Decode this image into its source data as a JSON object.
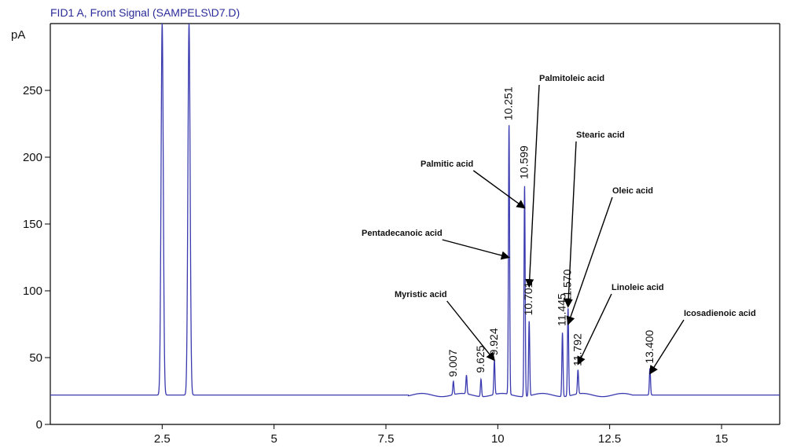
{
  "chart_data": {
    "type": "line",
    "title": "FID1 A, Front Signal (SAMPELS\\D7.D)",
    "ylabel": "pA",
    "xlabel": "",
    "xlim": [
      0,
      16.3
    ],
    "ylim": [
      0,
      300
    ],
    "x_ticks": [
      2.5,
      5,
      7.5,
      10,
      12.5,
      15
    ],
    "x_tick_labels": [
      "2.5",
      "5",
      "7.5",
      "10",
      "12.5",
      "15"
    ],
    "y_ticks": [
      0,
      50,
      100,
      150,
      200,
      250
    ],
    "y_tick_labels": [
      "0",
      "50",
      "100",
      "150",
      "200",
      "250"
    ],
    "baseline": 22,
    "series_color": "#3a3ab0",
    "peaks": [
      {
        "rt": 2.5,
        "height": 300,
        "label": ""
      },
      {
        "rt": 3.1,
        "height": 300,
        "label": ""
      },
      {
        "rt": 9.007,
        "height": 32,
        "label": "9.007"
      },
      {
        "rt": 9.3,
        "height": 36,
        "label": ""
      },
      {
        "rt": 9.625,
        "height": 35,
        "label": "9.625"
      },
      {
        "rt": 9.924,
        "height": 48,
        "label": "9.924"
      },
      {
        "rt": 10.251,
        "height": 224,
        "label": "10.251"
      },
      {
        "rt": 10.599,
        "height": 180,
        "label": "10.599"
      },
      {
        "rt": 10.701,
        "height": 78,
        "label": "10.701"
      },
      {
        "rt": 11.445,
        "height": 70,
        "label": "11.445"
      },
      {
        "rt": 11.57,
        "height": 88,
        "label": "11.570"
      },
      {
        "rt": 11.792,
        "height": 40,
        "label": "11.792"
      },
      {
        "rt": 13.4,
        "height": 42,
        "label": "13.400"
      }
    ],
    "annotations": [
      {
        "text": "Myristic acid",
        "target_rt": 9.924,
        "target_y": 48
      },
      {
        "text": "Pentadecanoic acid",
        "target_rt": 10.251,
        "target_y": 125
      },
      {
        "text": "Palmitic acid",
        "target_rt": 10.599,
        "target_y": 162
      },
      {
        "text": "Palmitoleic acid",
        "target_rt": 10.701,
        "target_y": 103
      },
      {
        "text": "Stearic acid",
        "target_rt": 11.57,
        "target_y": 88
      },
      {
        "text": "Oleic acid",
        "target_rt": 11.57,
        "target_y": 75
      },
      {
        "text": "Linoleic acid",
        "target_rt": 11.792,
        "target_y": 45
      },
      {
        "text": "Icosadienoic acid",
        "target_rt": 13.4,
        "target_y": 38
      }
    ]
  }
}
